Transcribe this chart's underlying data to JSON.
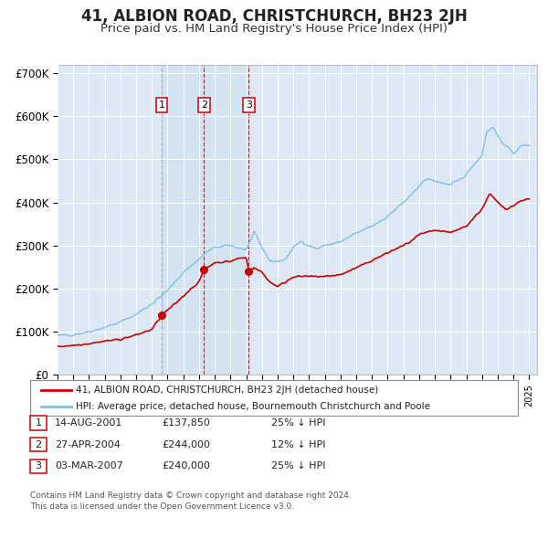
{
  "title": "41, ALBION ROAD, CHRISTCHURCH, BH23 2JH",
  "subtitle": "Price paid vs. HM Land Registry's House Price Index (HPI)",
  "background_color": "#dce9f5",
  "plot_bg": "#dce9f5",
  "title_fontsize": 12,
  "subtitle_fontsize": 9.5,
  "ylim": [
    0,
    720000
  ],
  "yticks": [
    0,
    100000,
    200000,
    300000,
    400000,
    500000,
    600000,
    700000
  ],
  "ytick_labels": [
    "£0",
    "£100K",
    "£200K",
    "£300K",
    "£400K",
    "£500K",
    "£600K",
    "£700K"
  ],
  "purchases": [
    {
      "date_num": 2001.62,
      "price": 137850,
      "label": "1"
    },
    {
      "date_num": 2004.32,
      "price": 244000,
      "label": "2"
    },
    {
      "date_num": 2007.17,
      "price": 240000,
      "label": "3"
    }
  ],
  "vline_color_1": "#aaaaaa",
  "vline_color_23": "#cc0000",
  "legend_address": "41, ALBION ROAD, CHRISTCHURCH, BH23 2JH (detached house)",
  "legend_hpi": "HPI: Average price, detached house, Bournemouth Christchurch and Poole",
  "table_rows": [
    {
      "num": "1",
      "date": "14-AUG-2001",
      "price": "£137,850",
      "hpi": "25% ↓ HPI"
    },
    {
      "num": "2",
      "date": "27-APR-2004",
      "price": "£244,000",
      "hpi": "12% ↓ HPI"
    },
    {
      "num": "3",
      "date": "03-MAR-2007",
      "price": "£240,000",
      "hpi": "25% ↓ HPI"
    }
  ],
  "footer": "Contains HM Land Registry data © Crown copyright and database right 2024.\nThis data is licensed under the Open Government Licence v3.0.",
  "hpi_color": "#7fbfdf",
  "price_color": "#cc0000",
  "grid_color": "#ffffff",
  "hpi_waypoints_x": [
    1995.0,
    1996.0,
    1997.0,
    1998.0,
    1999.0,
    2000.0,
    2001.0,
    2002.0,
    2003.0,
    2004.0,
    2004.5,
    2005.0,
    2006.0,
    2007.0,
    2007.5,
    2008.0,
    2008.5,
    2009.0,
    2009.5,
    2010.0,
    2010.5,
    2011.0,
    2011.5,
    2012.0,
    2013.0,
    2014.0,
    2015.0,
    2016.0,
    2017.0,
    2017.5,
    2018.0,
    2018.5,
    2019.0,
    2019.5,
    2020.0,
    2020.5,
    2021.0,
    2021.5,
    2022.0,
    2022.3,
    2022.7,
    2023.0,
    2023.5,
    2024.0,
    2024.5,
    2025.0
  ],
  "hpi_waypoints_y": [
    90000,
    93000,
    100000,
    110000,
    122000,
    140000,
    165000,
    195000,
    238000,
    268000,
    285000,
    295000,
    300000,
    290000,
    330000,
    295000,
    265000,
    262000,
    268000,
    295000,
    310000,
    300000,
    292000,
    300000,
    308000,
    328000,
    345000,
    368000,
    400000,
    415000,
    440000,
    455000,
    450000,
    445000,
    440000,
    450000,
    465000,
    490000,
    510000,
    565000,
    575000,
    555000,
    530000,
    515000,
    530000,
    535000
  ],
  "price_waypoints_x": [
    1995.0,
    1996.0,
    1997.0,
    1998.0,
    1999.0,
    2000.0,
    2001.0,
    2001.62,
    2002.5,
    2003.5,
    2004.0,
    2004.32,
    2005.0,
    2006.0,
    2006.5,
    2007.0,
    2007.17,
    2007.5,
    2008.0,
    2008.5,
    2009.0,
    2009.5,
    2010.0,
    2011.0,
    2012.0,
    2013.0,
    2014.0,
    2015.0,
    2016.0,
    2017.0,
    2017.5,
    2018.0,
    2019.0,
    2020.0,
    2021.0,
    2022.0,
    2022.5,
    2023.0,
    2023.5,
    2024.0,
    2024.5,
    2025.0
  ],
  "price_waypoints_y": [
    65000,
    68000,
    72000,
    78000,
    82000,
    92000,
    105000,
    137850,
    165000,
    200000,
    215000,
    244000,
    260000,
    263000,
    270000,
    272000,
    240000,
    248000,
    238000,
    215000,
    205000,
    215000,
    228000,
    228000,
    228000,
    232000,
    248000,
    265000,
    283000,
    300000,
    310000,
    325000,
    335000,
    330000,
    345000,
    385000,
    420000,
    400000,
    385000,
    392000,
    405000,
    408000
  ]
}
